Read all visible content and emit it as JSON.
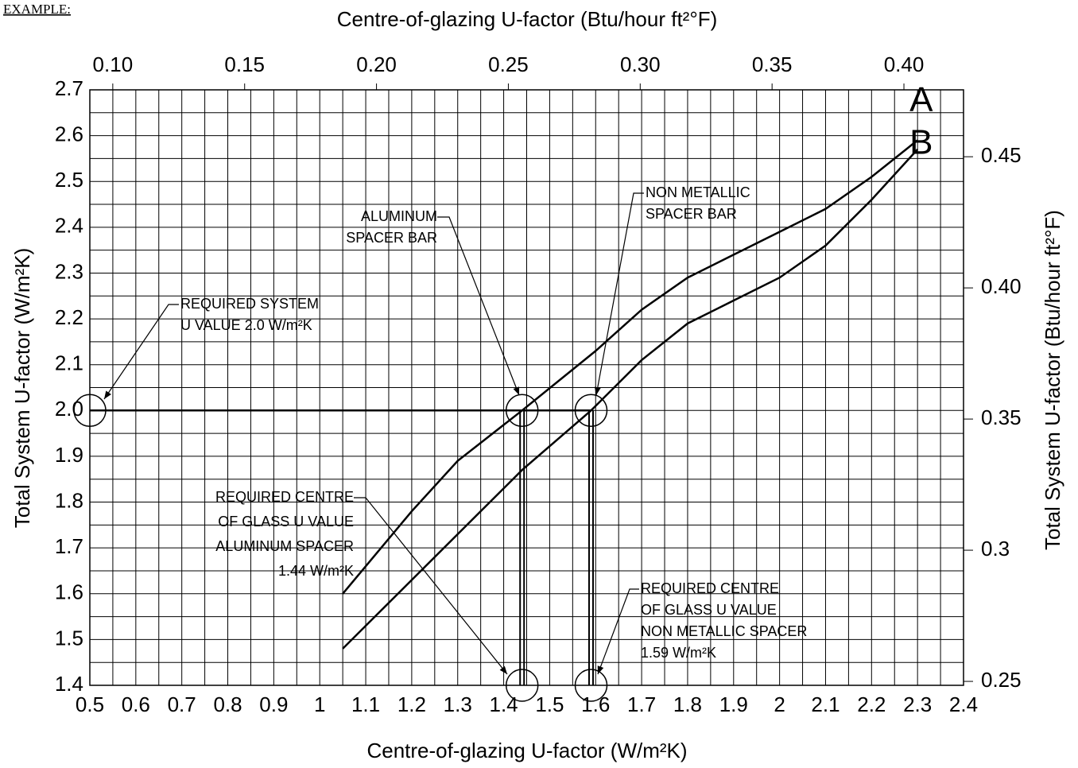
{
  "example_label": "EXAMPLE:",
  "chart_data": {
    "type": "line",
    "x_label": "Centre-of-glazing U-factor (W/m²K)",
    "x2_label": "Centre-of-glazing U-factor (Btu/hour ft²°F)",
    "y_label": "Total System U-factor (W/m²K)",
    "y2_label": "Total System U-factor (Btu/hour ft²°F)",
    "xlim": [
      0.5,
      2.4
    ],
    "xticks": [
      0.5,
      0.6,
      0.7,
      0.8,
      0.9,
      1,
      1.1,
      1.2,
      1.3,
      1.4,
      1.5,
      1.6,
      1.7,
      1.8,
      1.9,
      2,
      2.1,
      2.2,
      2.3,
      2.4
    ],
    "ylim": [
      1.4,
      2.7
    ],
    "yticks": [
      1.4,
      1.5,
      1.6,
      1.7,
      1.8,
      1.9,
      {
        "value": 2.0,
        "label": "2.0"
      },
      2.1,
      2.2,
      2.3,
      2.4,
      2.5,
      2.6,
      2.7
    ],
    "x2lim": [
      0.0913,
      0.4226
    ],
    "x2ticks": [
      {
        "value": 0.1,
        "label": "0.10"
      },
      0.15,
      {
        "value": 0.2,
        "label": "0.20"
      },
      0.25,
      {
        "value": 0.3,
        "label": "0.30"
      },
      0.35,
      {
        "value": 0.4,
        "label": "0.40"
      }
    ],
    "y2lim": [
      0.2485,
      0.4755
    ],
    "y2ticks": [
      0.25,
      0.3,
      0.35,
      {
        "value": 0.4,
        "label": "0.40"
      },
      0.45
    ],
    "grid": true,
    "minor_grid": true,
    "color": "#000000",
    "series": [
      {
        "name": "A",
        "x": [
          1.05,
          1.2,
          1.3,
          1.44,
          1.6,
          1.7,
          1.8,
          1.9,
          2.0,
          2.1,
          2.2,
          2.3
        ],
        "values": [
          1.6,
          1.78,
          1.89,
          2.0,
          2.13,
          2.22,
          2.29,
          2.34,
          2.39,
          2.44,
          2.51,
          2.59
        ]
      },
      {
        "name": "B",
        "x": [
          1.05,
          1.2,
          1.3,
          1.44,
          1.59,
          1.7,
          1.8,
          1.9,
          2.0,
          2.1,
          2.2,
          2.3
        ],
        "values": [
          1.48,
          1.63,
          1.73,
          1.87,
          2.0,
          2.11,
          2.19,
          2.24,
          2.29,
          2.36,
          2.46,
          2.57
        ]
      }
    ],
    "markers": {
      "x": [
        0.5,
        1.44,
        1.59,
        1.44,
        1.59
      ],
      "y": [
        2.0,
        2.0,
        2.0,
        1.4,
        1.4
      ]
    },
    "annotations": [
      [
        "REQUIRED SYSTEM",
        "U VALUE 2.0 W/m²K"
      ],
      [
        "ALUMINUM",
        "SPACER BAR"
      ],
      [
        "NON METALLIC",
        "SPACER BAR"
      ],
      [
        "REQUIRED CENTRE",
        "OF GLASS U VALUE",
        "ALUMINUM SPACER",
        "1.44 W/m²K"
      ],
      [
        "REQUIRED CENTRE",
        "OF GLASS U VALUE",
        "NON METALLIC  SPACER",
        "1.59 W/m²K"
      ]
    ]
  }
}
